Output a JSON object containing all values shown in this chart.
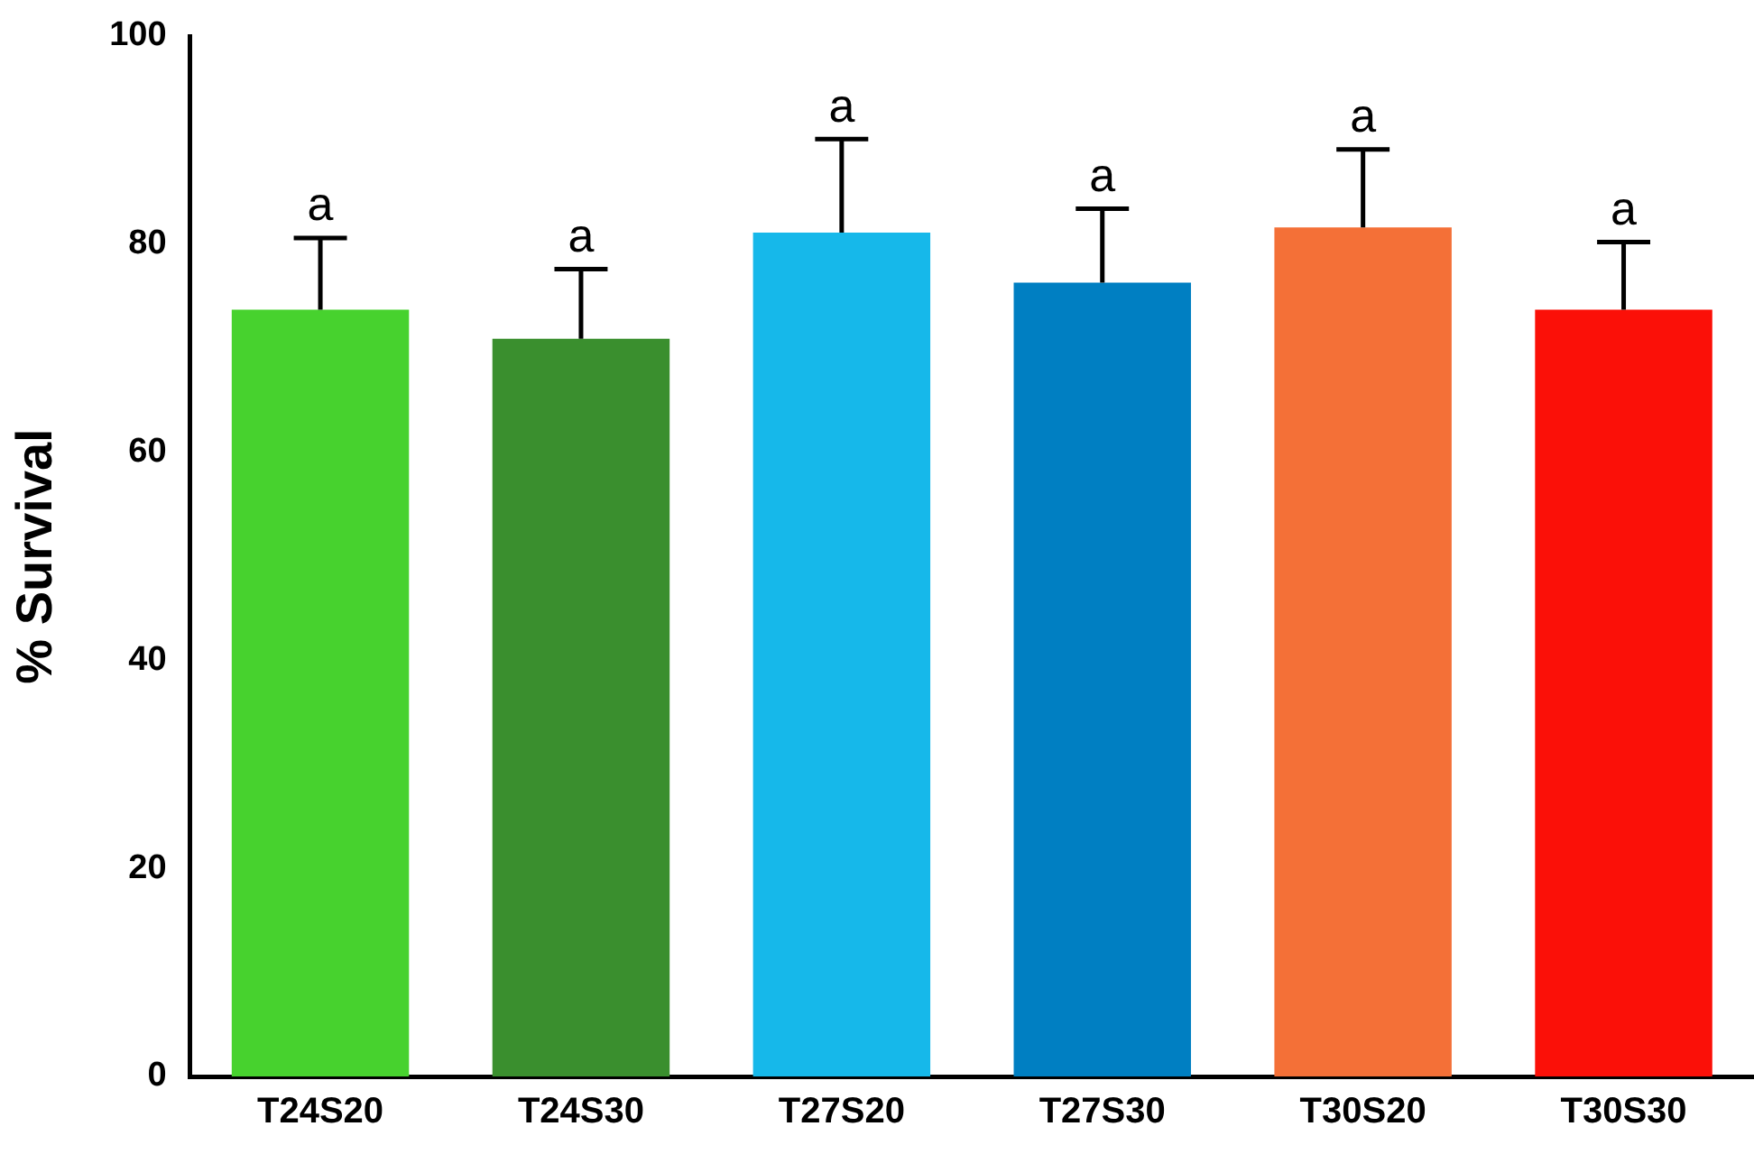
{
  "chart_data": {
    "type": "bar",
    "ylabel": "% Survival",
    "categories": [
      "T24S20",
      "T24S30",
      "T27S20",
      "T27S30",
      "T30S20",
      "T30S30"
    ],
    "values": [
      73.7,
      70.9,
      81.1,
      76.3,
      81.6,
      73.7
    ],
    "colors": [
      "#47d22e",
      "#3a8f2e",
      "#16b8ea",
      "#007fc2",
      "#f47037",
      "#fb1008"
    ],
    "errors": [
      [
        73.7,
        80.6
      ],
      [
        70.9,
        77.6
      ],
      [
        81.1,
        90.1
      ],
      [
        76.3,
        83.4
      ],
      [
        81.6,
        89.1
      ],
      [
        73.7,
        80.2
      ]
    ],
    "annotations": [
      {
        "text": "a",
        "x": "T24S20",
        "y": 80.6
      },
      {
        "text": "a",
        "x": "T24S30",
        "y": 77.6
      },
      {
        "text": "a",
        "x": "T27S20",
        "y": 90.1
      },
      {
        "text": "a",
        "x": "T27S30",
        "y": 83.4
      },
      {
        "text": "a",
        "x": "T30S20",
        "y": 89.1
      },
      {
        "text": "a",
        "x": "T30S30",
        "y": 80.2
      }
    ],
    "ylim": [
      0,
      100
    ],
    "yticks": [
      0,
      20,
      40,
      60,
      80,
      100
    ],
    "grid": false,
    "legend": false
  }
}
